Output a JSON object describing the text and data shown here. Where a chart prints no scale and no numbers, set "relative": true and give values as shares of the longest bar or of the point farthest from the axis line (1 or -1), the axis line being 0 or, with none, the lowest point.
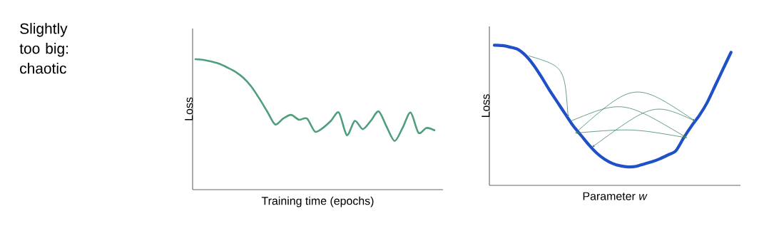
{
  "chart_data": [
    {
      "type": "line",
      "relative": true,
      "ylabel": "Loss",
      "xlabel": "Training time (epochs)",
      "annotations": [
        "Slightly too big: chaotic"
      ],
      "color": "#4f9e7c",
      "categories": [
        null,
        null,
        null,
        null,
        null,
        null,
        null,
        null,
        null,
        null,
        null,
        null,
        null,
        null,
        null,
        null,
        null,
        null,
        null,
        null,
        null,
        null,
        null,
        null,
        null,
        null,
        null,
        null,
        null,
        null,
        null
      ],
      "values": [
        1.0,
        0.995,
        0.982,
        0.964,
        0.936,
        0.904,
        0.858,
        0.791,
        0.7,
        0.6,
        0.5,
        0.545,
        0.573,
        0.536,
        0.545,
        0.445,
        0.473,
        0.527,
        0.591,
        0.418,
        0.527,
        0.464,
        0.527,
        0.6,
        0.482,
        0.373,
        0.473,
        0.591,
        0.436,
        0.473,
        0.455
      ]
    },
    {
      "type": "line",
      "relative": true,
      "ylabel": "Loss",
      "xlabel": "Parameter *w*",
      "color": "#1f50c8",
      "categories": [
        null,
        null,
        null,
        null,
        null,
        null,
        null,
        null,
        null,
        null,
        null,
        null,
        null,
        null,
        null,
        null,
        null,
        null,
        null,
        null,
        null,
        null,
        null,
        null,
        null,
        null,
        null,
        null,
        null,
        null,
        null
      ],
      "values": [
        1.0,
        0.997,
        0.986,
        0.969,
        0.924,
        0.856,
        0.771,
        0.678,
        0.593,
        0.508,
        0.424,
        0.356,
        0.288,
        0.229,
        0.186,
        0.156,
        0.139,
        0.132,
        0.136,
        0.153,
        0.169,
        0.19,
        0.217,
        0.246,
        0.339,
        0.424,
        0.5,
        0.593,
        0.712,
        0.831,
        0.949
      ]
    }
  ]
}
